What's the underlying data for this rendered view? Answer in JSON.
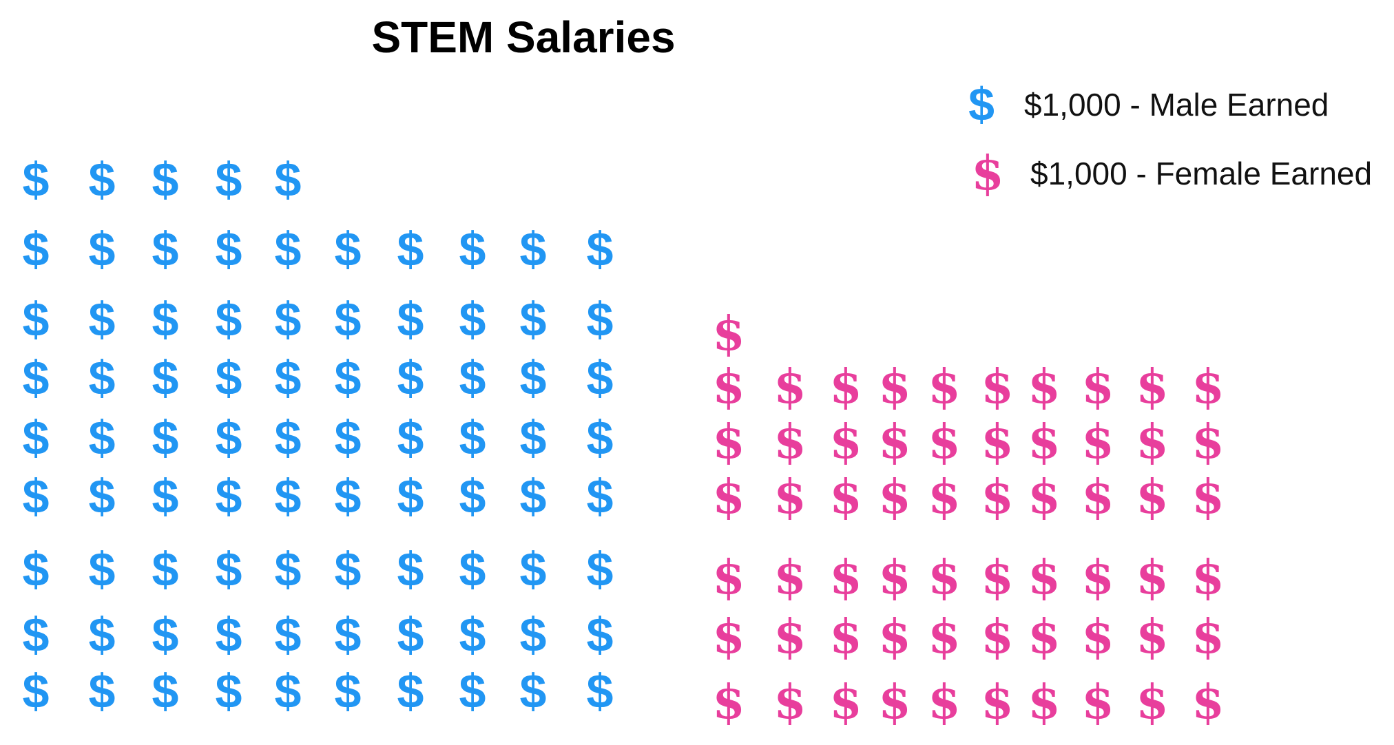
{
  "chart_data": {
    "type": "pictograph",
    "title": "STEM Salaries",
    "unit_value": 1000,
    "symbol": "$",
    "series": [
      {
        "name": "$1,000 - Male Earned",
        "icons": 85,
        "value": 85000,
        "color": "#2196F3"
      },
      {
        "name": "$1,000 - Female Earned",
        "icons": 61,
        "value": 61000,
        "color": "#E83E9C"
      }
    ]
  },
  "legend": {
    "icon_glyph": "$",
    "male_label": "$1,000 - Male Earned",
    "female_label": "$1,000 - Female Earned"
  }
}
